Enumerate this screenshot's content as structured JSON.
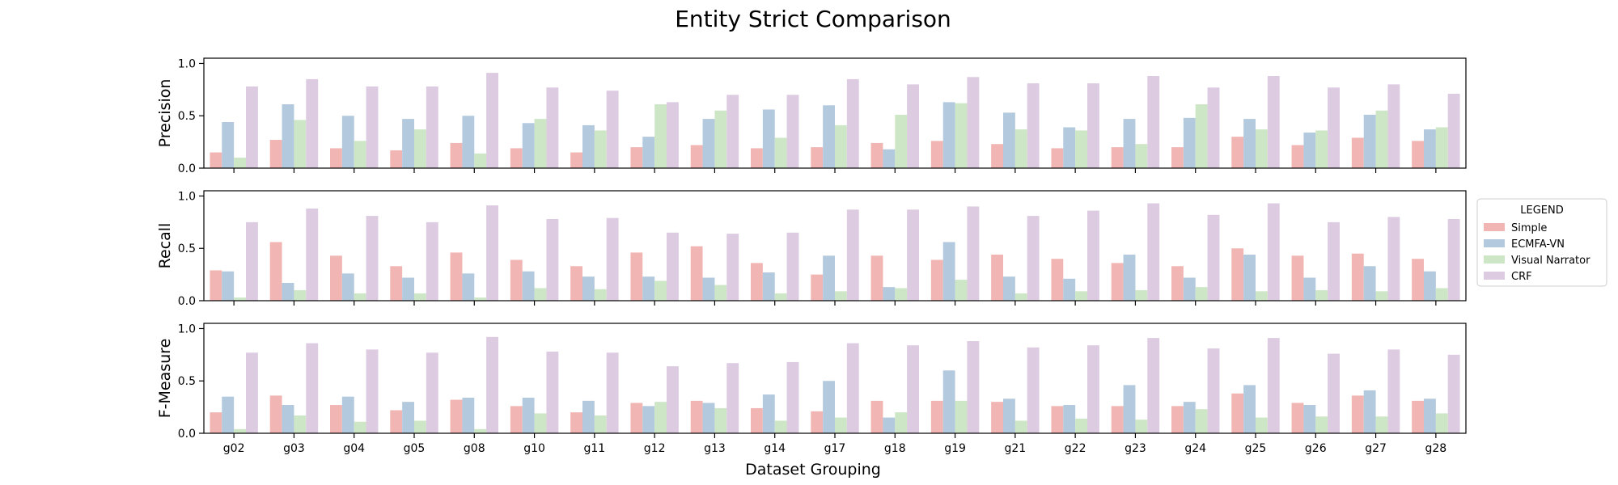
{
  "chart_data": {
    "type": "bar",
    "title": "Entity Strict Comparison",
    "xlabel": "Dataset Grouping",
    "categories": [
      "g02",
      "g03",
      "g04",
      "g05",
      "g08",
      "g10",
      "g11",
      "g12",
      "g13",
      "g14",
      "g17",
      "g18",
      "g19",
      "g21",
      "g22",
      "g23",
      "g24",
      "g25",
      "g26",
      "g27",
      "g28"
    ],
    "legend": {
      "title": "LEGEND",
      "placement": "right",
      "entries": [
        "Simple",
        "ECMFA-VN",
        "Visual Narrator",
        "CRF"
      ]
    },
    "colors": {
      "Simple": "#f1b6b3",
      "ECMFA-VN": "#b3c9de",
      "Visual Narrator": "#cde6c6",
      "CRF": "#dccbe1"
    },
    "y_ticks": [
      "0.0",
      "0.5",
      "1.0"
    ],
    "ylim": [
      0,
      1.05
    ],
    "grid": false,
    "panels": [
      {
        "ylabel": "Precision",
        "series": [
          {
            "name": "Simple",
            "values": [
              0.15,
              0.27,
              0.19,
              0.17,
              0.24,
              0.19,
              0.15,
              0.2,
              0.22,
              0.19,
              0.2,
              0.24,
              0.26,
              0.23,
              0.19,
              0.2,
              0.2,
              0.3,
              0.22,
              0.29,
              0.26
            ]
          },
          {
            "name": "ECMFA-VN",
            "values": [
              0.44,
              0.61,
              0.5,
              0.47,
              0.5,
              0.43,
              0.41,
              0.3,
              0.47,
              0.56,
              0.6,
              0.18,
              0.63,
              0.53,
              0.39,
              0.47,
              0.48,
              0.47,
              0.34,
              0.51,
              0.37
            ]
          },
          {
            "name": "Visual Narrator",
            "values": [
              0.1,
              0.46,
              0.26,
              0.37,
              0.14,
              0.47,
              0.36,
              0.61,
              0.55,
              0.29,
              0.41,
              0.51,
              0.62,
              0.37,
              0.36,
              0.23,
              0.61,
              0.37,
              0.36,
              0.55,
              0.39
            ]
          },
          {
            "name": "CRF",
            "values": [
              0.78,
              0.85,
              0.78,
              0.78,
              0.91,
              0.77,
              0.74,
              0.63,
              0.7,
              0.7,
              0.85,
              0.8,
              0.87,
              0.81,
              0.81,
              0.88,
              0.77,
              0.88,
              0.77,
              0.8,
              0.71
            ]
          }
        ]
      },
      {
        "ylabel": "Recall",
        "series": [
          {
            "name": "Simple",
            "values": [
              0.29,
              0.56,
              0.43,
              0.33,
              0.46,
              0.39,
              0.33,
              0.46,
              0.52,
              0.36,
              0.25,
              0.43,
              0.39,
              0.44,
              0.4,
              0.36,
              0.33,
              0.5,
              0.43,
              0.45,
              0.4
            ]
          },
          {
            "name": "ECMFA-VN",
            "values": [
              0.28,
              0.17,
              0.26,
              0.22,
              0.26,
              0.28,
              0.23,
              0.23,
              0.22,
              0.27,
              0.43,
              0.13,
              0.56,
              0.23,
              0.21,
              0.44,
              0.22,
              0.44,
              0.22,
              0.33,
              0.28
            ]
          },
          {
            "name": "Visual Narrator",
            "values": [
              0.03,
              0.1,
              0.07,
              0.07,
              0.03,
              0.12,
              0.11,
              0.19,
              0.15,
              0.07,
              0.09,
              0.12,
              0.2,
              0.07,
              0.09,
              0.1,
              0.13,
              0.09,
              0.1,
              0.09,
              0.12
            ]
          },
          {
            "name": "CRF",
            "values": [
              0.75,
              0.88,
              0.81,
              0.75,
              0.91,
              0.78,
              0.79,
              0.65,
              0.64,
              0.65,
              0.87,
              0.87,
              0.9,
              0.81,
              0.86,
              0.93,
              0.82,
              0.93,
              0.75,
              0.8,
              0.78
            ]
          }
        ]
      },
      {
        "ylabel": "F-Measure",
        "series": [
          {
            "name": "Simple",
            "values": [
              0.2,
              0.36,
              0.27,
              0.22,
              0.32,
              0.26,
              0.2,
              0.29,
              0.31,
              0.24,
              0.21,
              0.31,
              0.31,
              0.3,
              0.26,
              0.26,
              0.26,
              0.38,
              0.29,
              0.36,
              0.31
            ]
          },
          {
            "name": "ECMFA-VN",
            "values": [
              0.35,
              0.27,
              0.35,
              0.3,
              0.34,
              0.34,
              0.31,
              0.26,
              0.29,
              0.37,
              0.5,
              0.15,
              0.6,
              0.33,
              0.27,
              0.46,
              0.3,
              0.46,
              0.27,
              0.41,
              0.33
            ]
          },
          {
            "name": "Visual Narrator",
            "values": [
              0.04,
              0.17,
              0.11,
              0.12,
              0.04,
              0.19,
              0.17,
              0.3,
              0.24,
              0.12,
              0.15,
              0.2,
              0.31,
              0.12,
              0.14,
              0.13,
              0.23,
              0.15,
              0.16,
              0.16,
              0.19
            ]
          },
          {
            "name": "CRF",
            "values": [
              0.77,
              0.86,
              0.8,
              0.77,
              0.92,
              0.78,
              0.77,
              0.64,
              0.67,
              0.68,
              0.86,
              0.84,
              0.88,
              0.82,
              0.84,
              0.91,
              0.81,
              0.91,
              0.76,
              0.8,
              0.75
            ]
          }
        ]
      }
    ]
  }
}
